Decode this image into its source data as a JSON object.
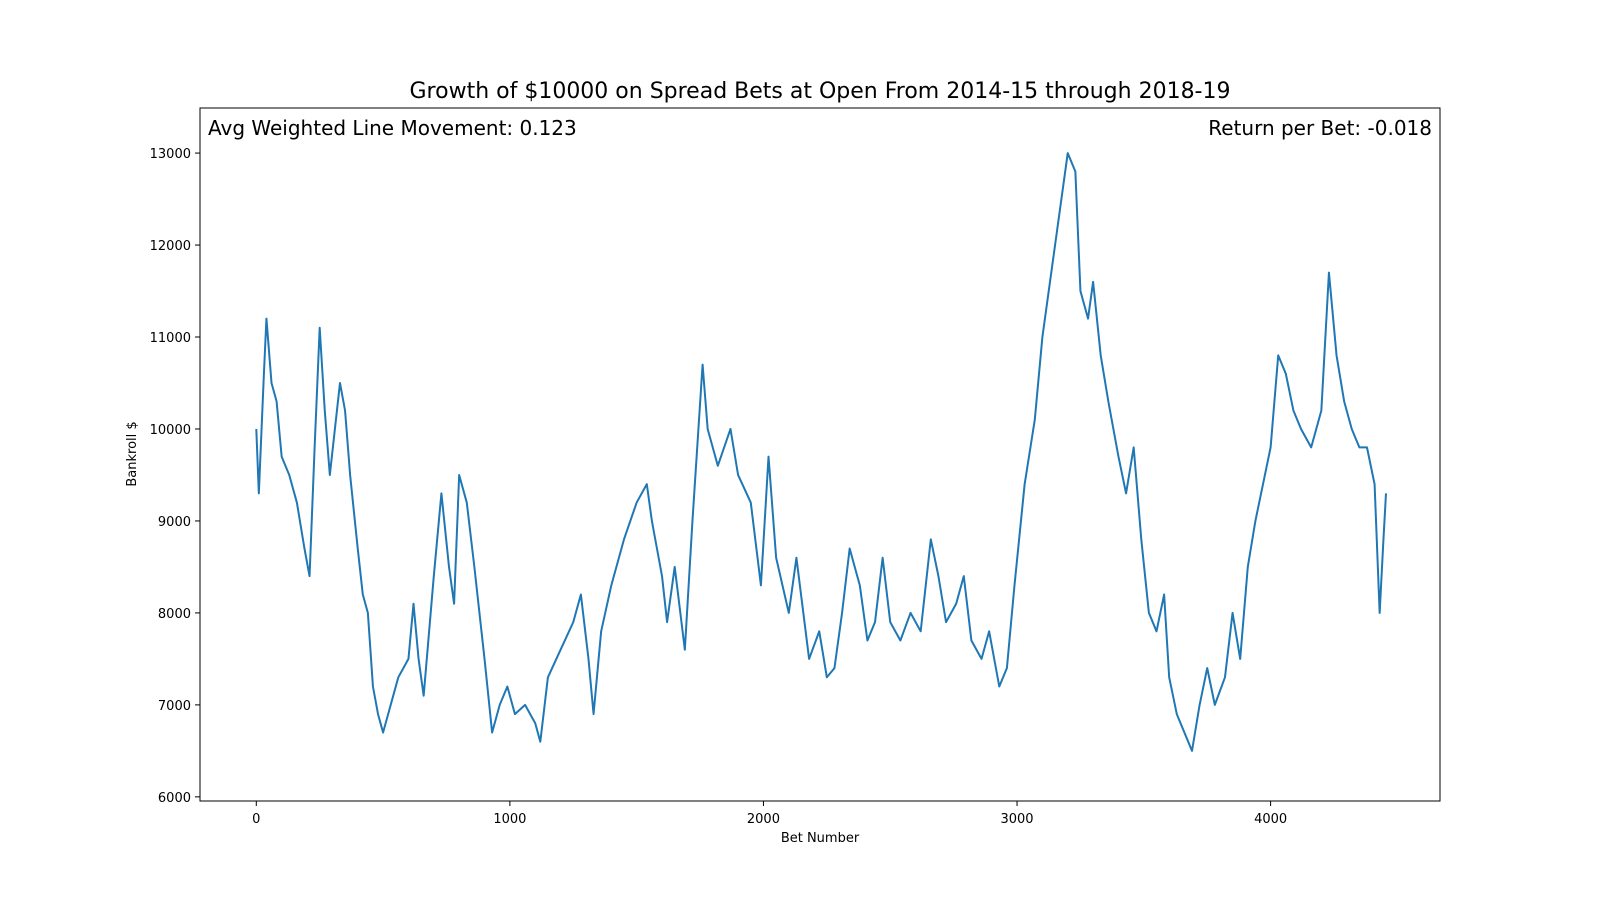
{
  "chart_data": {
    "type": "line",
    "title": "Growth of $10000 on Spread Bets at Open From 2014-15 through 2018-19",
    "x_label": "Bet Number",
    "y_label": "Bankroll $",
    "annotations": [
      "Avg Weighted Line Movement: 0.123",
      "Return per Bet: -0.018"
    ],
    "x": [
      0,
      10,
      30,
      40,
      60,
      80,
      100,
      130,
      160,
      190,
      210,
      230,
      250,
      270,
      290,
      310,
      330,
      350,
      370,
      400,
      420,
      440,
      460,
      480,
      500,
      520,
      540,
      560,
      600,
      620,
      640,
      660,
      700,
      730,
      760,
      780,
      800,
      830,
      860,
      900,
      930,
      960,
      990,
      1020,
      1060,
      1100,
      1120,
      1150,
      1200,
      1250,
      1280,
      1310,
      1330,
      1360,
      1400,
      1450,
      1500,
      1540,
      1560,
      1600,
      1620,
      1650,
      1690,
      1720,
      1760,
      1780,
      1820,
      1870,
      1900,
      1950,
      1990,
      2020,
      2050,
      2100,
      2130,
      2180,
      2220,
      2250,
      2280,
      2310,
      2340,
      2380,
      2410,
      2440,
      2470,
      2500,
      2540,
      2580,
      2620,
      2660,
      2690,
      2720,
      2760,
      2790,
      2820,
      2860,
      2890,
      2930,
      2960,
      2990,
      3030,
      3070,
      3100,
      3140,
      3170,
      3200,
      3230,
      3250,
      3280,
      3300,
      3330,
      3360,
      3400,
      3430,
      3460,
      3490,
      3520,
      3550,
      3580,
      3600,
      3630,
      3660,
      3690,
      3720,
      3750,
      3780,
      3820,
      3850,
      3880,
      3910,
      3940,
      3970,
      4000,
      4030,
      4060,
      4090,
      4120,
      4160,
      4200,
      4230,
      4260,
      4290,
      4320,
      4350,
      4380,
      4410,
      4430,
      4445,
      4455
    ],
    "series": [
      {
        "name": "Bankroll",
        "color": "#1f77b4",
        "values": [
          10000,
          9300,
          10600,
          11200,
          10500,
          10300,
          9700,
          9500,
          9200,
          8700,
          8400,
          9800,
          11100,
          10200,
          9500,
          10000,
          10500,
          10200,
          9500,
          8700,
          8200,
          8000,
          7200,
          6900,
          6700,
          6900,
          7100,
          7300,
          7500,
          8100,
          7500,
          7100,
          8400,
          9300,
          8500,
          8100,
          9500,
          9200,
          8500,
          7500,
          6700,
          7000,
          7200,
          6900,
          7000,
          6800,
          6600,
          7300,
          7600,
          7900,
          8200,
          7500,
          6900,
          7800,
          8300,
          8800,
          9200,
          9400,
          9000,
          8400,
          7900,
          8500,
          7600,
          9000,
          10700,
          10000,
          9600,
          10000,
          9500,
          9200,
          8300,
          9700,
          8600,
          8000,
          8600,
          7500,
          7800,
          7300,
          7400,
          8000,
          8700,
          8300,
          7700,
          7900,
          8600,
          7900,
          7700,
          8000,
          7800,
          8800,
          8400,
          7900,
          8100,
          8400,
          7700,
          7500,
          7800,
          7200,
          7400,
          8300,
          9400,
          10100,
          11000,
          11800,
          12400,
          13000,
          12800,
          11500,
          11200,
          11600,
          10800,
          10300,
          9700,
          9300,
          9800,
          8800,
          8000,
          7800,
          8200,
          7300,
          6900,
          6700,
          6500,
          7000,
          7400,
          7000,
          7300,
          8000,
          7500,
          8500,
          9000,
          9400,
          9800,
          10800,
          10600,
          10200,
          10000,
          9800,
          10200,
          11700,
          10800,
          10300,
          10000,
          9800,
          9800,
          9400,
          8000,
          8800,
          9300
        ]
      }
    ],
    "xlim": [
      -222,
      4668
    ],
    "ylim": [
      5955,
      13490
    ],
    "xticks": [
      0,
      1000,
      2000,
      3000,
      4000
    ],
    "yticks": [
      6000,
      7000,
      8000,
      9000,
      10000,
      11000,
      12000,
      13000
    ]
  }
}
